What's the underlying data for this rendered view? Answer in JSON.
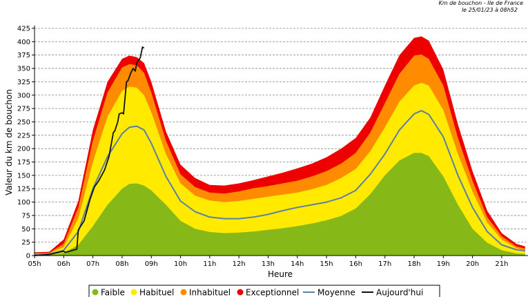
{
  "header": {
    "stamp_line1": "Km de bouchon - Ile de France",
    "stamp_line2": "le 25/01/23 à 08h52"
  },
  "chart_data": {
    "type": "area",
    "title": "",
    "xlabel": "Heure",
    "ylabel": "Valeur du  km de bouchon",
    "ylim": [
      0,
      425
    ],
    "xlim": [
      5,
      21.9
    ],
    "yticks": [
      0,
      25,
      50,
      75,
      100,
      125,
      150,
      175,
      200,
      225,
      250,
      275,
      300,
      325,
      350,
      375,
      400,
      425
    ],
    "xticks": [
      {
        "value": 5,
        "label": "05h"
      },
      {
        "value": 6,
        "label": "06h"
      },
      {
        "value": 7,
        "label": "07h"
      },
      {
        "value": 8,
        "label": "08h"
      },
      {
        "value": 9,
        "label": "09h"
      },
      {
        "value": 10,
        "label": "10h"
      },
      {
        "value": 11,
        "label": "11h"
      },
      {
        "value": 12,
        "label": "12h"
      },
      {
        "value": 13,
        "label": "13h"
      },
      {
        "value": 14,
        "label": "14h"
      },
      {
        "value": 15,
        "label": "15h"
      },
      {
        "value": 16,
        "label": "16h"
      },
      {
        "value": 17,
        "label": "17h"
      },
      {
        "value": 18,
        "label": "18h"
      },
      {
        "value": 19,
        "label": "19h"
      },
      {
        "value": 20,
        "label": "20h"
      },
      {
        "value": 21,
        "label": "21h"
      }
    ],
    "grid": "horizontal dashed",
    "legend_position": "bottom",
    "x": [
      5,
      5.5,
      6,
      6.5,
      7,
      7.5,
      8,
      8.25,
      8.5,
      8.75,
      9,
      9.5,
      10,
      10.5,
      11,
      11.5,
      12,
      12.5,
      13,
      13.5,
      14,
      14.5,
      15,
      15.5,
      16,
      16.5,
      17,
      17.5,
      18,
      18.25,
      18.5,
      19,
      19.5,
      20,
      20.5,
      21,
      21.5,
      21.8
    ],
    "series": [
      {
        "name": "Faible",
        "type": "area",
        "color": "#86b817",
        "values": [
          0,
          1,
          5,
          20,
          55,
          95,
          125,
          134,
          135,
          131,
          122,
          95,
          65,
          50,
          44,
          42,
          43,
          45,
          48,
          51,
          55,
          60,
          66,
          74,
          88,
          115,
          150,
          178,
          192,
          192,
          186,
          148,
          95,
          50,
          24,
          10,
          4,
          3
        ]
      },
      {
        "name": "Habituel",
        "type": "area",
        "color": "#ffea00",
        "values": [
          3,
          4,
          16,
          70,
          175,
          260,
          308,
          316,
          314,
          300,
          268,
          190,
          135,
          112,
          103,
          100,
          102,
          106,
          110,
          114,
          118,
          124,
          132,
          145,
          162,
          195,
          240,
          288,
          318,
          323,
          318,
          272,
          190,
          120,
          62,
          30,
          14,
          10
        ]
      },
      {
        "name": "Inhabituel",
        "type": "area",
        "color": "#ff8c00",
        "values": [
          4,
          5,
          22,
          90,
          215,
          305,
          352,
          358,
          356,
          342,
          305,
          215,
          152,
          128,
          118,
          116,
          120,
          126,
          130,
          135,
          140,
          148,
          158,
          172,
          192,
          230,
          285,
          340,
          374,
          376,
          368,
          318,
          220,
          140,
          72,
          36,
          17,
          13
        ]
      },
      {
        "name": "Exceptionnel",
        "type": "area",
        "color": "#ee0000",
        "values": [
          6,
          7,
          30,
          102,
          235,
          325,
          368,
          374,
          371,
          360,
          325,
          232,
          170,
          145,
          132,
          131,
          135,
          141,
          148,
          155,
          163,
          172,
          184,
          200,
          220,
          258,
          318,
          375,
          407,
          410,
          402,
          348,
          245,
          158,
          84,
          42,
          22,
          17
        ]
      },
      {
        "name": "Moyenne",
        "type": "line",
        "color": "#5b7fa6",
        "values": [
          1,
          3,
          10,
          45,
          125,
          185,
          228,
          240,
          242,
          235,
          210,
          148,
          102,
          82,
          72,
          69,
          69,
          72,
          77,
          84,
          90,
          95,
          100,
          108,
          122,
          152,
          190,
          235,
          265,
          271,
          264,
          222,
          150,
          90,
          45,
          20,
          11,
          9
        ]
      },
      {
        "name": "Aujourd'hui",
        "type": "line",
        "color": "#111111",
        "x": [
          5.0,
          5.5,
          5.9,
          6.0,
          6.05,
          6.2,
          6.45,
          6.5,
          6.7,
          6.9,
          7.05,
          7.2,
          7.4,
          7.55,
          7.7,
          7.75,
          7.85,
          7.9,
          8.0,
          8.05,
          8.15,
          8.2,
          8.3,
          8.38,
          8.45,
          8.5,
          8.62,
          8.7,
          8.75
        ],
        "values": [
          0,
          2,
          7,
          8,
          6,
          8,
          12,
          48,
          65,
          105,
          128,
          140,
          160,
          185,
          230,
          233,
          250,
          265,
          267,
          265,
          325,
          327,
          342,
          350,
          345,
          360,
          370,
          390,
          388
        ]
      }
    ]
  }
}
